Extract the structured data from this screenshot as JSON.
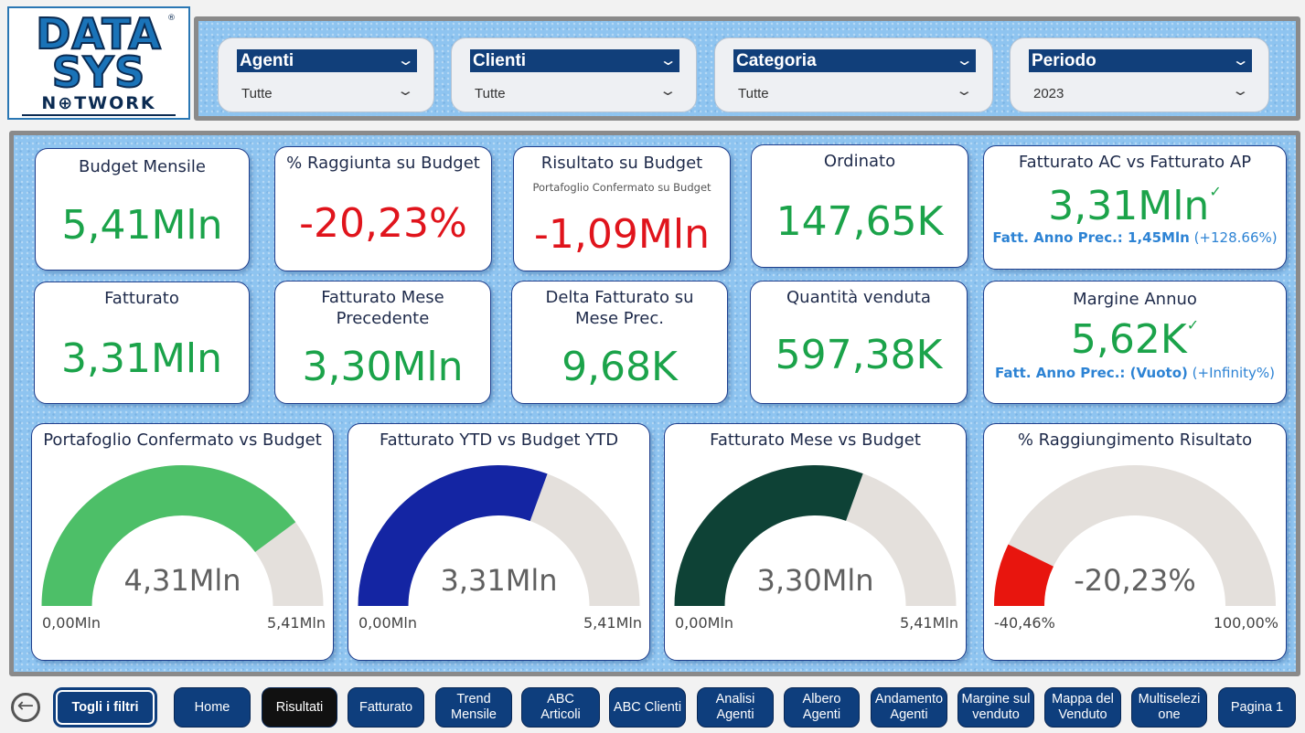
{
  "logo": {
    "line1": "DATA",
    "line2": "SYS",
    "line3": "N⊕TWORK",
    "reg": "®"
  },
  "filters": [
    {
      "label": "Agenti",
      "value": "Tutte"
    },
    {
      "label": "Clienti",
      "value": "Tutte"
    },
    {
      "label": "Categoria",
      "value": "Tutte"
    },
    {
      "label": "Periodo",
      "value": "2023"
    }
  ],
  "kpis": {
    "budget_mensile": {
      "title": "Budget Mensile",
      "value": "5,41Mln"
    },
    "raggiunta_budget": {
      "title": "% Raggiunta su Budget",
      "value": "-20,23%"
    },
    "risultato_budget": {
      "title": "Risultato su Budget",
      "subtitle": "Portafoglio Confermato su Budget",
      "value": "-1,09Mln"
    },
    "ordinato": {
      "title": "Ordinato",
      "value": "147,65K"
    },
    "fatturato_ac_ap": {
      "title": "Fatturato AC vs Fatturato AP",
      "value": "3,31Mln",
      "prev_label": "Fatt. Anno Prec.: 1,45Mln",
      "prev_pct": "(+128.66%)"
    },
    "fatturato": {
      "title": "Fatturato",
      "value": "3,31Mln"
    },
    "fatturato_mese_prec": {
      "title1": "Fatturato Mese",
      "title2": "Precedente",
      "value": "3,30Mln"
    },
    "delta_fatturato": {
      "title1": "Delta Fatturato su",
      "title2": "Mese Prec.",
      "value": "9,68K"
    },
    "quantita_venduta": {
      "title": "Quantità venduta",
      "value": "597,38K"
    },
    "margine_annuo": {
      "title": "Margine Annuo",
      "value": "5,62K",
      "prev_label": "Fatt. Anno Prec.: (Vuoto)",
      "prev_pct": "(+Infinity%)"
    }
  },
  "gauges": [
    {
      "title": "Portafoglio Confermato vs Budget",
      "value": "4,31Mln",
      "min": "0,00Mln",
      "max": "5,41Mln",
      "fraction": 0.797,
      "color": "#4dbf68"
    },
    {
      "title": "Fatturato YTD vs Budget YTD",
      "value": "3,31Mln",
      "min": "0,00Mln",
      "max": "5,41Mln",
      "fraction": 0.612,
      "color": "#1425a3"
    },
    {
      "title": "Fatturato Mese vs Budget",
      "value": "3,30Mln",
      "min": "0,00Mln",
      "max": "5,41Mln",
      "fraction": 0.61,
      "color": "#0e4236"
    },
    {
      "title": "% Raggiungimento Risultato",
      "value": "-20,23%",
      "min": "-40,46%",
      "max": "100,00%",
      "fraction": 0.144,
      "color": "#e8150e"
    }
  ],
  "nav": {
    "back": "←",
    "clear": "Togli i filtri",
    "pages": [
      {
        "l1": "Home",
        "l2": ""
      },
      {
        "l1": "Risultati",
        "l2": ""
      },
      {
        "l1": "Fatturato",
        "l2": ""
      },
      {
        "l1": "Trend",
        "l2": "Mensile"
      },
      {
        "l1": "ABC",
        "l2": "Articoli"
      },
      {
        "l1": "ABC Clienti",
        "l2": ""
      },
      {
        "l1": "Analisi",
        "l2": "Agenti"
      },
      {
        "l1": "Albero",
        "l2": "Agenti"
      },
      {
        "l1": "Andamento",
        "l2": "Agenti"
      },
      {
        "l1": "Margine sul",
        "l2": "venduto"
      },
      {
        "l1": "Mappa del",
        "l2": "Venduto"
      },
      {
        "l1": "Multiselezi",
        "l2": "one"
      },
      {
        "l1": "Pagina 1",
        "l2": ""
      }
    ],
    "active": "Risultati"
  },
  "colors": {
    "green": "#1ba34a",
    "red": "#e0141c",
    "navy": "#0e3e7d",
    "gauge_bg": "#e4e0dc"
  }
}
